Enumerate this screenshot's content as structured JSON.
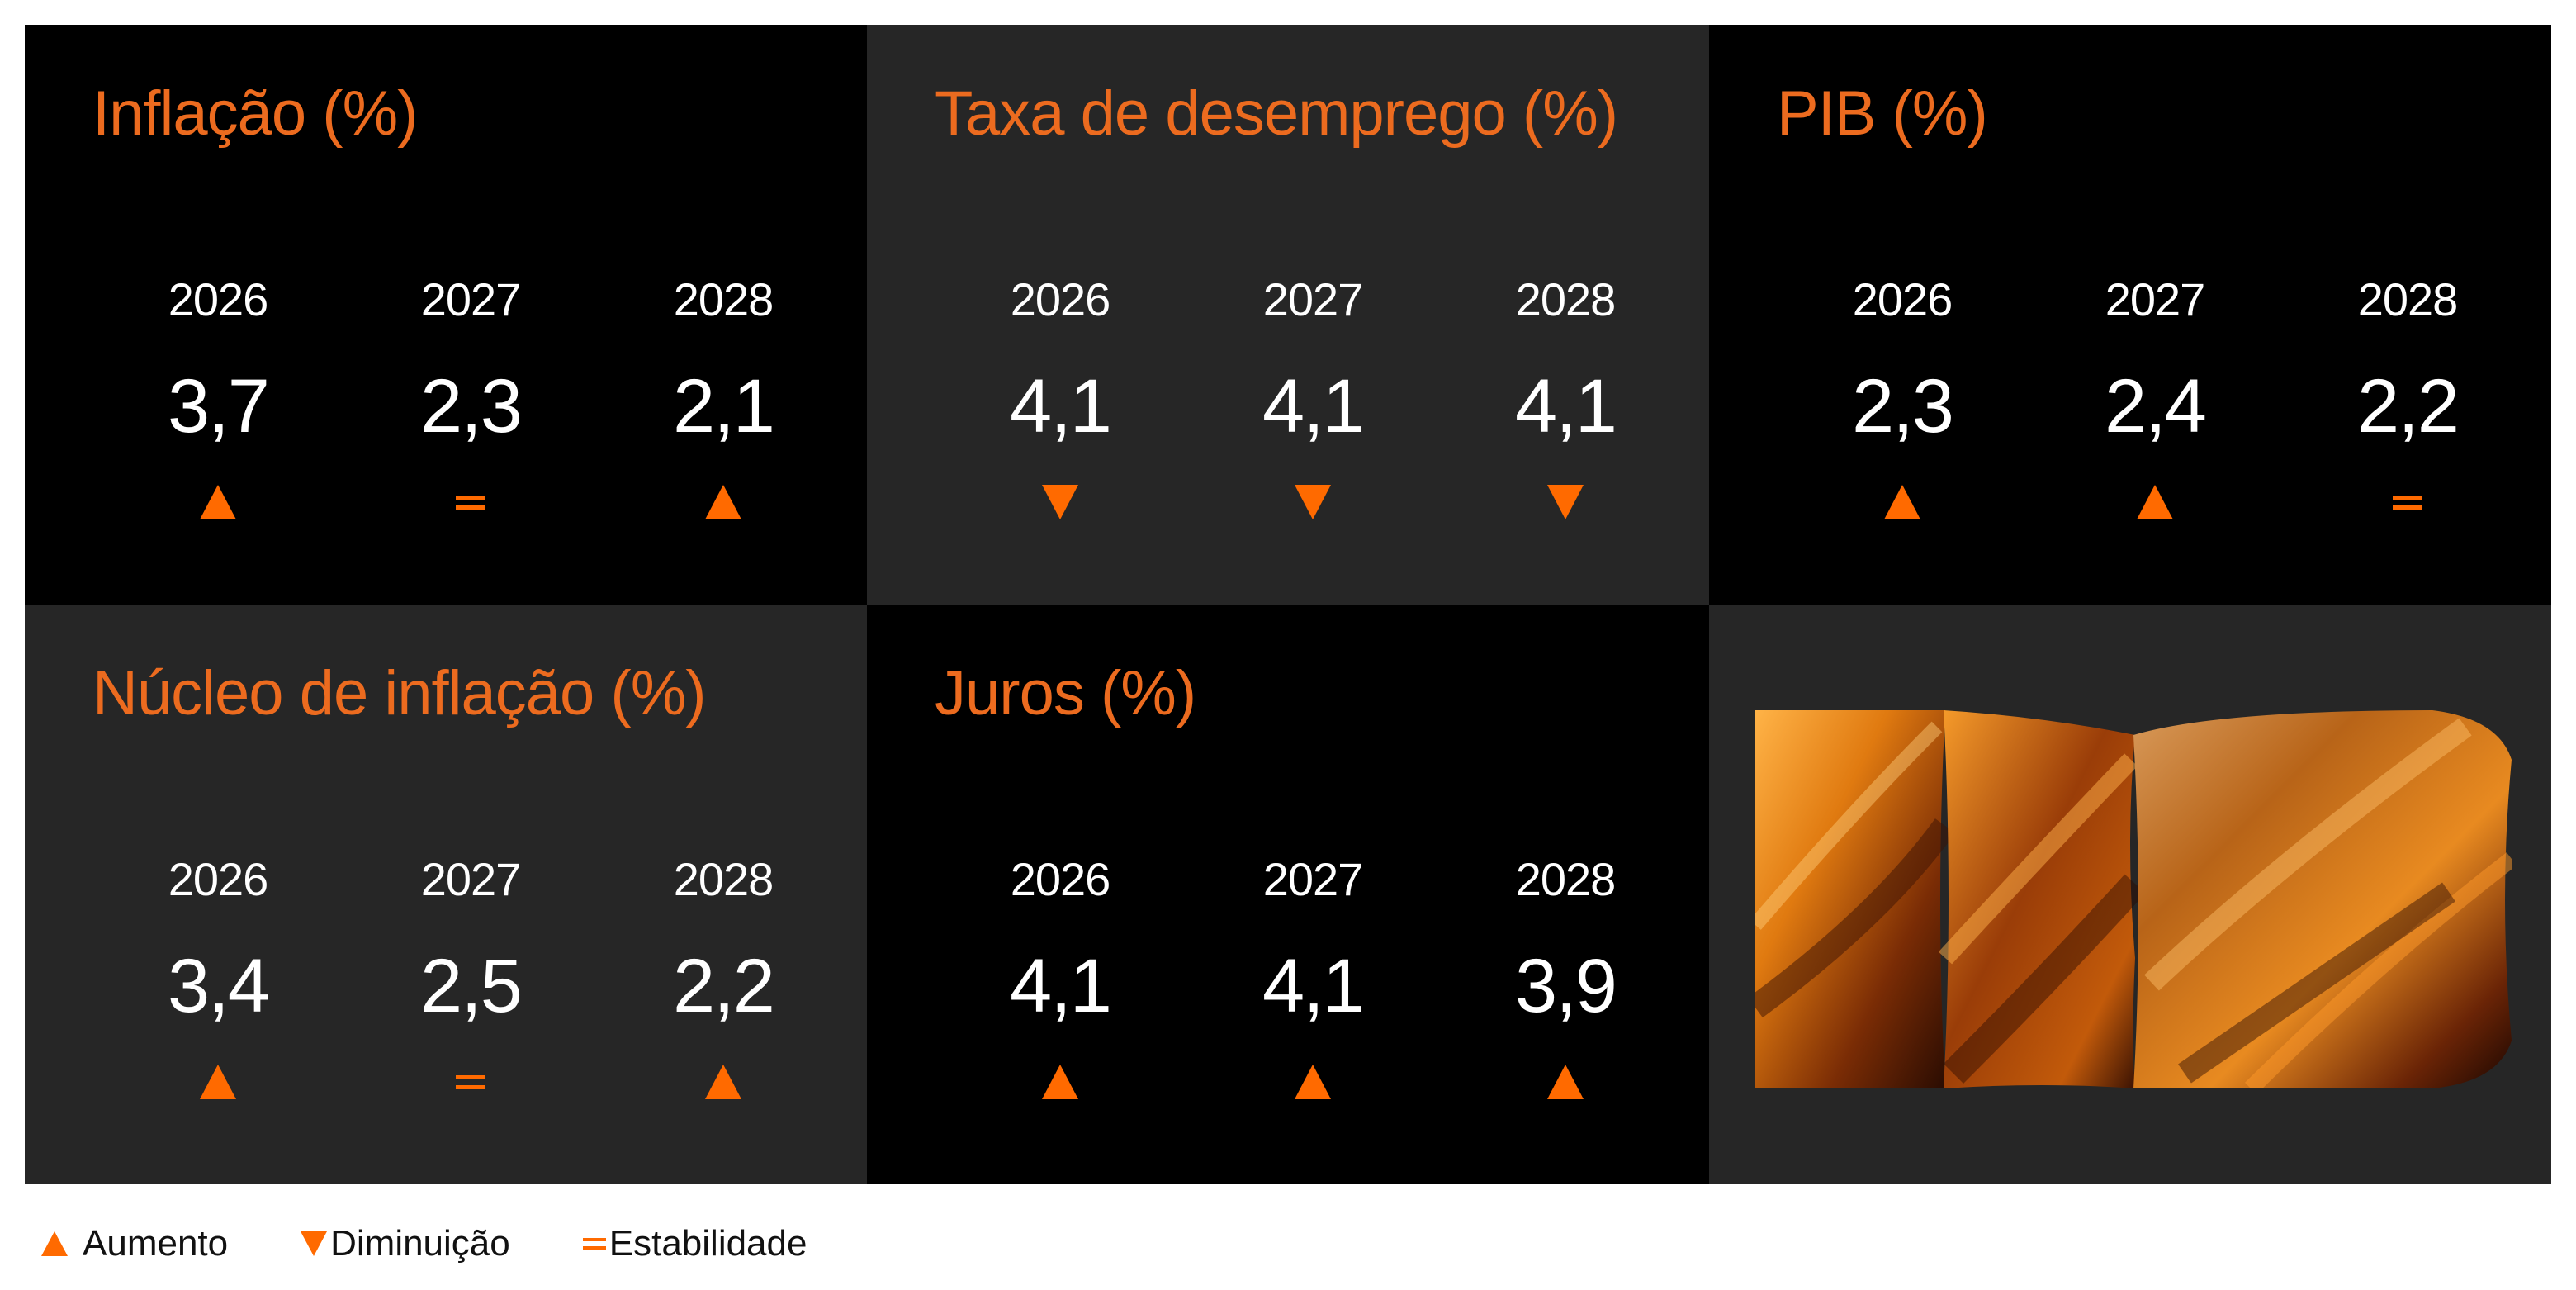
{
  "colors": {
    "accent": "#ec6b1f",
    "indicator": "#ff6a00",
    "panel_dark": "#000000",
    "panel_gray": "#262626"
  },
  "panels": [
    {
      "title": "Inflação (%)",
      "columns": [
        {
          "year": "2026",
          "value": "3,7",
          "trend": "up"
        },
        {
          "year": "2027",
          "value": "2,3",
          "trend": "equal"
        },
        {
          "year": "2028",
          "value": "2,1",
          "trend": "up"
        }
      ]
    },
    {
      "title": "Taxa de desemprego (%)",
      "columns": [
        {
          "year": "2026",
          "value": "4,1",
          "trend": "down"
        },
        {
          "year": "2027",
          "value": "4,1",
          "trend": "down"
        },
        {
          "year": "2028",
          "value": "4,1",
          "trend": "down"
        }
      ]
    },
    {
      "title": "PIB (%)",
      "columns": [
        {
          "year": "2026",
          "value": "2,3",
          "trend": "up"
        },
        {
          "year": "2027",
          "value": "2,4",
          "trend": "up"
        },
        {
          "year": "2028",
          "value": "2,2",
          "trend": "equal"
        }
      ]
    },
    {
      "title": "Núcleo de inflação (%)",
      "columns": [
        {
          "year": "2026",
          "value": "3,4",
          "trend": "up"
        },
        {
          "year": "2027",
          "value": "2,5",
          "trend": "equal"
        },
        {
          "year": "2028",
          "value": "2,2",
          "trend": "up"
        }
      ]
    },
    {
      "title": "Juros (%)",
      "columns": [
        {
          "year": "2026",
          "value": "4,1",
          "trend": "up"
        },
        {
          "year": "2027",
          "value": "4,1",
          "trend": "up"
        },
        {
          "year": "2028",
          "value": "3,9",
          "trend": "up"
        }
      ]
    }
  ],
  "legend": {
    "up": "Aumento",
    "down": "Diminuição",
    "equal": "Estabilidade"
  }
}
